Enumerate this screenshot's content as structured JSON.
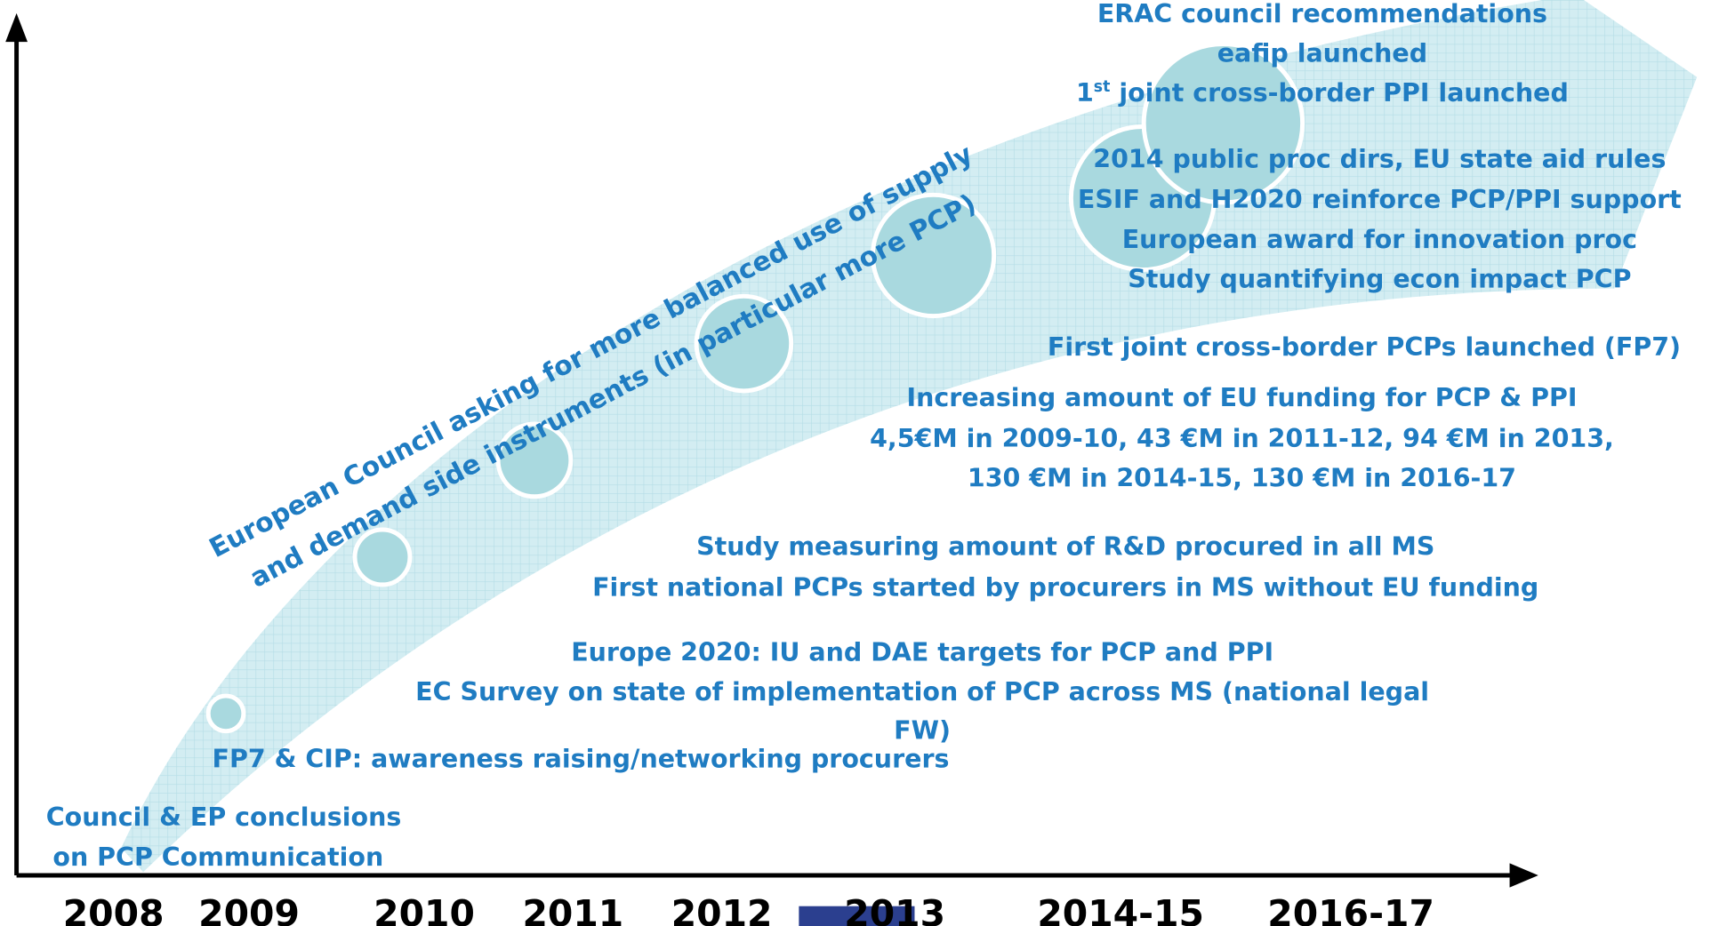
{
  "timeline": {
    "years": [
      "2008",
      "2009",
      "2010",
      "2011",
      "2012",
      "2013",
      "2014-15",
      "2016-17"
    ],
    "diagonal": [
      "European Council asking for more balanced use of supply",
      "and demand side instruments (in particular more PCP)"
    ],
    "events": [
      {
        "lines": [
          "Council & EP conclusions",
          "on PCP Communication"
        ]
      },
      {
        "lines": [
          "FP7 & CIP: awareness raising/networking procurers"
        ]
      },
      {
        "lines": [
          "Europe 2020: IU and DAE targets for PCP and PPI",
          "EC Survey on state of implementation of PCP across MS (national legal",
          "FW)"
        ]
      },
      {
        "lines": [
          "Study measuring amount of R&D procured in all MS",
          "First national PCPs started by procurers in MS without EU funding"
        ]
      },
      {
        "lines": [
          "Increasing amount of EU funding for PCP & PPI",
          "4,5€M in 2009-10, 43 €M in 2011-12, 94 €M in 2013,",
          "130 €M in 2014-15, 130 €M in 2016-17"
        ]
      },
      {
        "lines": [
          "First joint cross-border PCPs launched (FP7)"
        ]
      },
      {
        "lines": [
          "2014 public proc dirs, EU state aid rules",
          "ESIF and H2020 reinforce PCP/PPI support",
          "European award for innovation proc",
          "Study quantifying econ impact PCP"
        ]
      },
      {
        "lines": [
          "ERAC council recommendations",
          "eafip launched"
        ],
        "sup_line": {
          "pre": "1",
          "sup": "st",
          "post": " joint cross-border PPI launched"
        }
      }
    ]
  }
}
